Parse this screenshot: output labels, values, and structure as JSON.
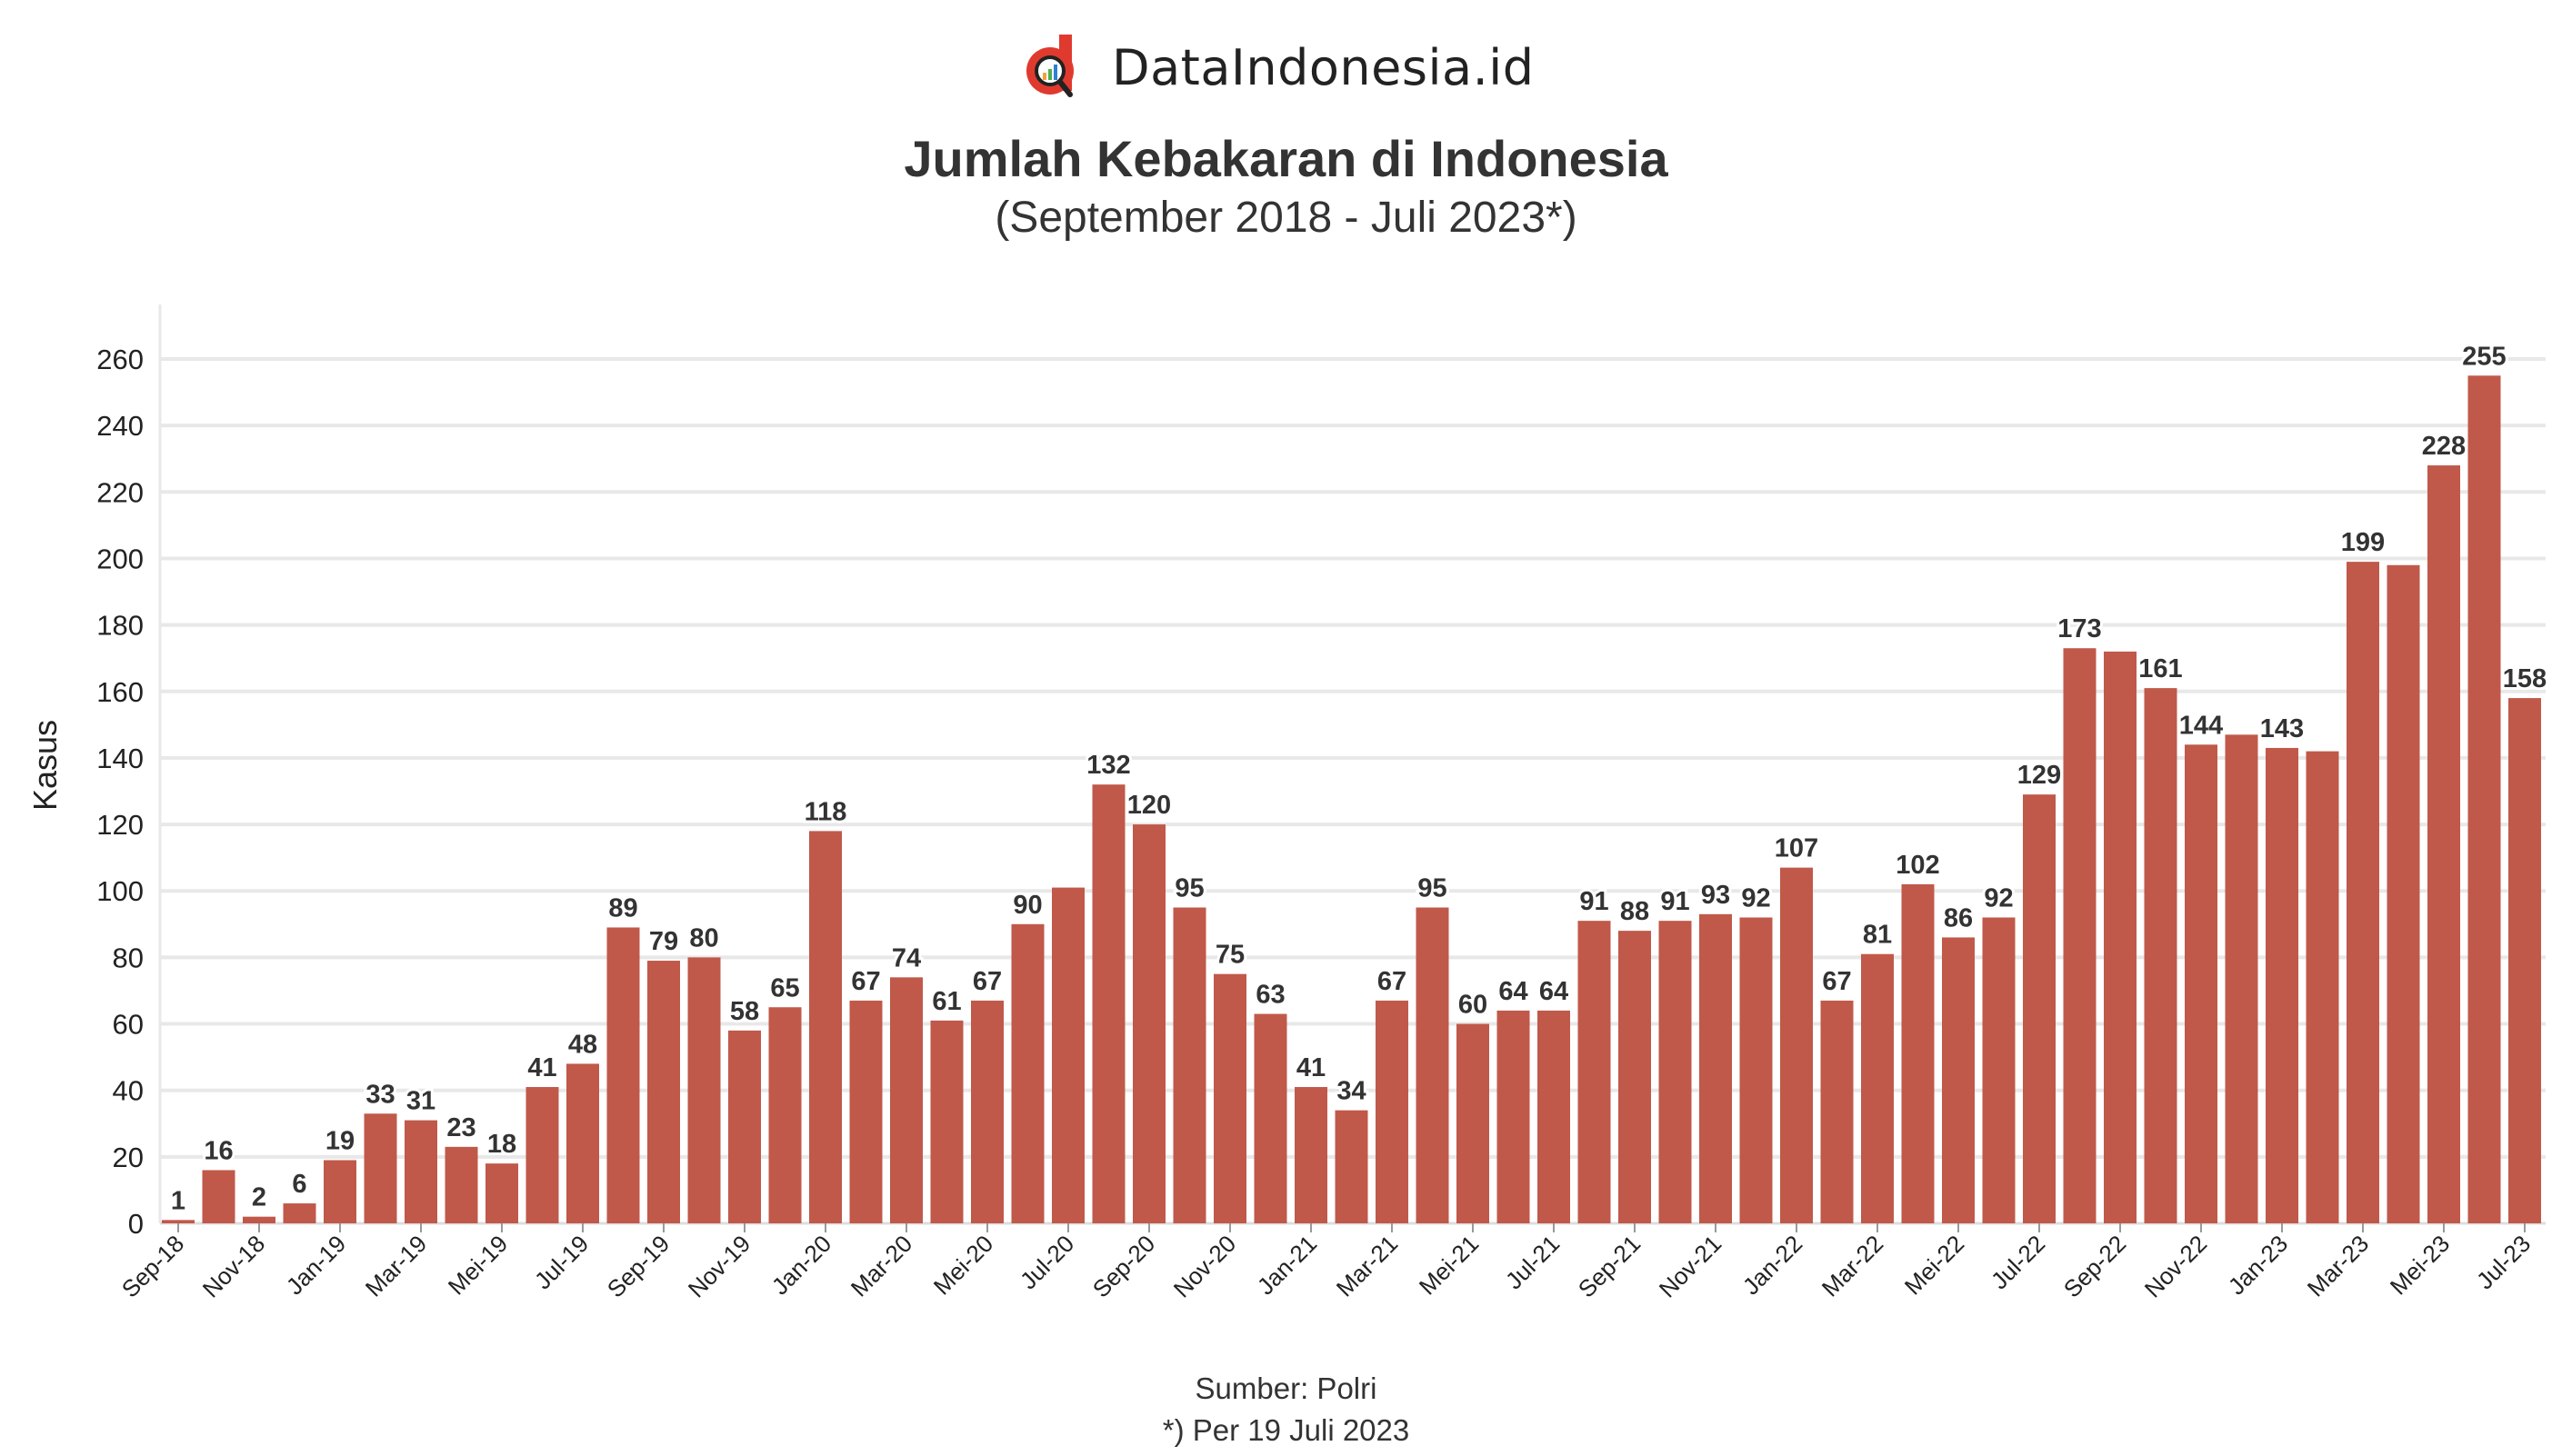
{
  "brand": {
    "name": "DataIndonesia.id",
    "colors": {
      "red": "#e03a2f",
      "dark": "#222222"
    }
  },
  "chart_data": {
    "type": "bar",
    "title": "Jumlah Kebakaran di Indonesia",
    "subtitle": "(September 2018 - Juli 2023*)",
    "xlabel": "",
    "ylabel": "Kasus",
    "ylim": [
      0,
      260
    ],
    "yticks": [
      0,
      20,
      40,
      60,
      80,
      100,
      120,
      140,
      160,
      180,
      200,
      220,
      240,
      260
    ],
    "grid": true,
    "bar_color": "#c0594a",
    "categories": [
      "Sep-18",
      "Okt-18",
      "Nov-18",
      "Des-18",
      "Jan-19",
      "Feb-19",
      "Mar-19",
      "Apr-19",
      "Mei-19",
      "Jun-19",
      "Jul-19",
      "Agu-19",
      "Sep-19",
      "Okt-19",
      "Nov-19",
      "Des-19",
      "Jan-20",
      "Feb-20",
      "Mar-20",
      "Apr-20",
      "Mei-20",
      "Jun-20",
      "Jul-20",
      "Agu-20",
      "Sep-20",
      "Okt-20",
      "Nov-20",
      "Des-20",
      "Jan-21",
      "Feb-21",
      "Mar-21",
      "Apr-21",
      "Mei-21",
      "Jun-21",
      "Jul-21",
      "Agu-21",
      "Sep-21",
      "Okt-21",
      "Nov-21",
      "Des-21",
      "Jan-22",
      "Feb-22",
      "Mar-22",
      "Apr-22",
      "Mei-22",
      "Jun-22",
      "Jul-22",
      "Agu-22",
      "Sep-22",
      "Okt-22",
      "Nov-22",
      "Des-22",
      "Jan-23",
      "Feb-23",
      "Mar-23",
      "Apr-23",
      "Mei-23",
      "Jun-23",
      "Jul-23"
    ],
    "xticks": [
      "Sep-18",
      "Nov-18",
      "Jan-19",
      "Mar-19",
      "Mei-19",
      "Jul-19",
      "Sep-19",
      "Nov-19",
      "Jan-20",
      "Mar-20",
      "Mei-20",
      "Jul-20",
      "Sep-20",
      "Nov-20",
      "Jan-21",
      "Mar-21",
      "Mei-21",
      "Jul-21",
      "Sep-21",
      "Nov-21",
      "Jan-22",
      "Mar-22",
      "Mei-22",
      "Jul-22",
      "Sep-22",
      "Nov-22",
      "Jan-23",
      "Mar-23",
      "Mei-23",
      "Jul-23"
    ],
    "values": [
      1,
      16,
      2,
      6,
      19,
      33,
      31,
      23,
      18,
      41,
      48,
      89,
      79,
      80,
      58,
      65,
      118,
      67,
      74,
      61,
      67,
      90,
      101,
      132,
      120,
      95,
      75,
      63,
      41,
      34,
      67,
      95,
      60,
      64,
      64,
      91,
      88,
      91,
      93,
      92,
      107,
      67,
      81,
      102,
      86,
      92,
      129,
      173,
      172,
      161,
      144,
      147,
      143,
      142,
      199,
      198,
      228,
      255,
      158
    ],
    "data_labels": [
      "1",
      "16",
      "2",
      "6",
      "19",
      "33",
      "31",
      "23",
      "18",
      "41",
      "48",
      "89",
      "79",
      "80",
      "58",
      "65",
      "118",
      "67",
      "74",
      "61",
      "67",
      "90",
      null,
      "132",
      "120",
      "95",
      "75",
      "63",
      "41",
      "34",
      "67",
      "95",
      "60",
      "64",
      "64",
      "91",
      "88",
      "91",
      "93",
      "92",
      "107",
      "67",
      "81",
      "102",
      "86",
      "92",
      "129",
      "173",
      null,
      "161",
      "144",
      null,
      "143",
      null,
      "199",
      null,
      "228",
      "255",
      "158"
    ]
  },
  "footer": {
    "source": "Sumber: Polri",
    "note": "*) Per 19 Juli 2023"
  }
}
